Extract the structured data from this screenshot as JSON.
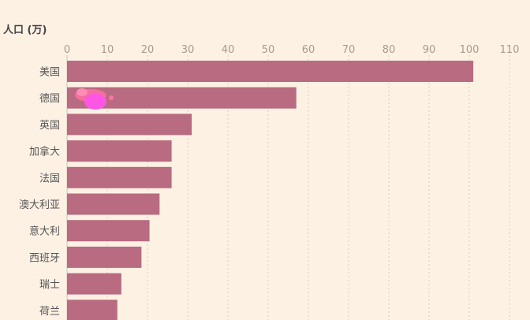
{
  "chart_data": {
    "type": "bar",
    "orientation": "horizontal",
    "ylabel": "人口 (万)",
    "categories": [
      "美国",
      "德国",
      "英国",
      "加拿大",
      "法国",
      "澳大利亚",
      "意大利",
      "西班牙",
      "瑞士",
      "荷兰"
    ],
    "values": [
      101,
      57,
      31,
      26,
      26,
      23,
      20.5,
      18.5,
      13.5,
      12.5
    ],
    "xlim": [
      0,
      110
    ],
    "xticks": [
      0,
      10,
      20,
      30,
      40,
      50,
      60,
      70,
      80,
      90,
      100,
      110
    ],
    "grid": true,
    "bar_color": "#b86b81",
    "background": "#fdf1e4"
  }
}
